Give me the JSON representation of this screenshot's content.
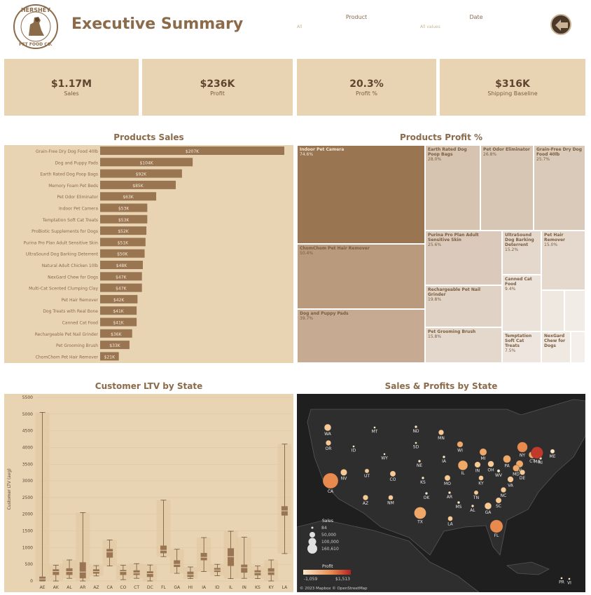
{
  "header": {
    "title": "Executive Summary",
    "logo_top": "HERSHEY",
    "logo_bottom": "PET FOOD CO.",
    "filter_product_label": "Product",
    "filter_product_value": "All",
    "filter_date_label": "Date",
    "filter_date_value": "All values"
  },
  "kpis": [
    {
      "value": "$1.17M",
      "label": "Sales"
    },
    {
      "value": "$236K",
      "label": "Profit"
    },
    {
      "value": "20.3%",
      "label": "Profit %"
    },
    {
      "value": "$316K",
      "label": "Shipping Baseline"
    }
  ],
  "sections": {
    "sales": "Products Sales",
    "profit": "Products Profit %",
    "ltv": "Customer LTV by State",
    "map": "Sales & Profits by State"
  },
  "products_sales": [
    {
      "name": "Grain-Free Dry Dog Food 40lb",
      "value": 207,
      "label": "$207K"
    },
    {
      "name": "Dog and Puppy Pads",
      "value": 104,
      "label": "$104K"
    },
    {
      "name": "Earth Rated Dog Poop Bags",
      "value": 92,
      "label": "$92K"
    },
    {
      "name": "Memory Foam Pet Beds",
      "value": 85,
      "label": "$85K"
    },
    {
      "name": "Pet Odor Eliminator",
      "value": 63,
      "label": "$63K"
    },
    {
      "name": "Indoor Pet Camera",
      "value": 53,
      "label": "$53K"
    },
    {
      "name": "Temptation Soft Cat Treats",
      "value": 53,
      "label": "$53K"
    },
    {
      "name": "ProBiotic Supplements for Dogs",
      "value": 52,
      "label": "$52K"
    },
    {
      "name": "Purina Pro Plan Adult Sensitive Skin",
      "value": 51,
      "label": "$51K"
    },
    {
      "name": "UltraSound Dog Barking Deterrent",
      "value": 50,
      "label": "$50K"
    },
    {
      "name": "Natural Adult Chicken 10lb",
      "value": 48,
      "label": "$48K"
    },
    {
      "name": "NexGard Chew for Dogs",
      "value": 47,
      "label": "$47K"
    },
    {
      "name": "Multi-Cat Scented Clumping Clay",
      "value": 47,
      "label": "$47K"
    },
    {
      "name": "Pet Hair Remover",
      "value": 42,
      "label": "$42K"
    },
    {
      "name": "Dog Treats with Real Bone",
      "value": 41,
      "label": "$41K"
    },
    {
      "name": "Canned Cat Food",
      "value": 41,
      "label": "$41K"
    },
    {
      "name": "Rechargeable Pet Nail Grinder",
      "value": 36,
      "label": "$36K"
    },
    {
      "name": "Pet Grooming Brush",
      "value": 33,
      "label": "$33K"
    },
    {
      "name": "ChomChom Pet Hair Remover",
      "value": 21,
      "label": "$21K"
    }
  ],
  "treemap": [
    {
      "name": "Indoor Pet Camera",
      "pct": "74.6%",
      "color": "#9a7552",
      "dark": false
    },
    {
      "name": "ChomChom Pet Hair Remover",
      "pct": "50.4%",
      "color": "#b99a7c",
      "dark": true
    },
    {
      "name": "Dog and Puppy Pads",
      "pct": "39.7%",
      "color": "#c6ab92",
      "dark": true
    },
    {
      "name": "Earth Rated Dog Poop Bags",
      "pct": "28.0%",
      "color": "#d6c3b0",
      "dark": true
    },
    {
      "name": "Pet Odor Eliminator",
      "pct": "26.8%",
      "color": "#d8c6b4",
      "dark": true
    },
    {
      "name": "Grain-Free Dry Dog Food 40lb",
      "pct": "25.7%",
      "color": "#dacab9",
      "dark": true
    },
    {
      "name": "Purina Pro Plan Adult Sensitive Skin",
      "pct": "25.6%",
      "color": "#dbcabb",
      "dark": true
    },
    {
      "name": "UltraSound Dog Barking Deterrent",
      "pct": "15.2%",
      "color": "#e4d8cd",
      "dark": true
    },
    {
      "name": "Pet Hair Remover",
      "pct": "15.0%",
      "color": "#e5d9ce",
      "dark": true
    },
    {
      "name": "Rechargeable Pet Nail Grinder",
      "pct": "19.8%",
      "color": "#e0d2c5",
      "dark": true
    },
    {
      "name": "Canned Cat Food",
      "pct": "9.4%",
      "color": "#ebe2d9",
      "dark": true
    },
    {
      "name": "Pet Grooming Brush",
      "pct": "15.8%",
      "color": "#e4d8cc",
      "dark": true
    },
    {
      "name": "Temptation Soft Cat Treats",
      "pct": "7.5%",
      "color": "#eee6de",
      "dark": true
    },
    {
      "name": "NexGard Chew for Dogs",
      "pct": "",
      "color": "#f0e9e2",
      "dark": true
    },
    {
      "name": "",
      "pct": "",
      "color": "#efe8e0",
      "dark": true
    },
    {
      "name": "",
      "pct": "",
      "color": "#f2ece6",
      "dark": true
    },
    {
      "name": "",
      "pct": "",
      "color": "#f4efea",
      "dark": true
    }
  ],
  "chart_data": {
    "type": "boxplot",
    "title": "Customer LTV by State",
    "ylabel": "Customer LTV (avg)",
    "ylim": [
      0,
      5500
    ],
    "yticks": [
      0,
      500,
      1000,
      1500,
      2000,
      2500,
      3000,
      3500,
      4000,
      4500,
      5000,
      5500
    ],
    "categories": [
      "AE",
      "AK",
      "AL",
      "AR",
      "AZ",
      "CA",
      "CO",
      "CT",
      "DC",
      "FL",
      "GA",
      "HI",
      "IA",
      "ID",
      "IL",
      "IN",
      "KS",
      "KY",
      "LA"
    ],
    "boxes": [
      {
        "min": 0,
        "q1": 0,
        "median": 60,
        "q3": 130,
        "max": 5050
      },
      {
        "min": 0,
        "q1": 180,
        "median": 280,
        "q3": 350,
        "max": 470
      },
      {
        "min": 80,
        "q1": 180,
        "median": 280,
        "q3": 380,
        "max": 630
      },
      {
        "min": 0,
        "q1": 80,
        "median": 270,
        "q3": 560,
        "max": 2050
      },
      {
        "min": 150,
        "q1": 220,
        "median": 280,
        "q3": 350,
        "max": 460
      },
      {
        "min": 450,
        "q1": 700,
        "median": 870,
        "q3": 960,
        "max": 1230
      },
      {
        "min": 40,
        "q1": 180,
        "median": 280,
        "q3": 330,
        "max": 470
      },
      {
        "min": 80,
        "q1": 180,
        "median": 240,
        "q3": 320,
        "max": 520
      },
      {
        "min": 0,
        "q1": 120,
        "median": 220,
        "q3": 290,
        "max": 480
      },
      {
        "min": 730,
        "q1": 830,
        "median": 920,
        "q3": 1060,
        "max": 2420
      },
      {
        "min": 230,
        "q1": 420,
        "median": 500,
        "q3": 620,
        "max": 950
      },
      {
        "min": 70,
        "q1": 120,
        "median": 190,
        "q3": 280,
        "max": 420
      },
      {
        "min": 280,
        "q1": 620,
        "median": 710,
        "q3": 840,
        "max": 1300
      },
      {
        "min": 160,
        "q1": 270,
        "median": 330,
        "q3": 390,
        "max": 500
      },
      {
        "min": 70,
        "q1": 450,
        "median": 730,
        "q3": 980,
        "max": 1490
      },
      {
        "min": 80,
        "q1": 250,
        "median": 400,
        "q3": 490,
        "max": 1310
      },
      {
        "min": 70,
        "q1": 170,
        "median": 250,
        "q3": 320,
        "max": 450
      },
      {
        "min": 0,
        "q1": 180,
        "median": 270,
        "q3": 380,
        "max": 630
      },
      {
        "min": 820,
        "q1": 1960,
        "median": 2100,
        "q3": 2240,
        "max": 4100
      }
    ]
  },
  "map": {
    "states": [
      {
        "code": "WA",
        "sales": 20000,
        "profit": 200
      },
      {
        "code": "OR",
        "sales": 12000,
        "profit": 150
      },
      {
        "code": "ID",
        "sales": 2000,
        "profit": 60
      },
      {
        "code": "MT",
        "sales": 2000,
        "profit": 60
      },
      {
        "code": "ND",
        "sales": 3000,
        "profit": 60
      },
      {
        "code": "MN",
        "sales": 12000,
        "profit": 200
      },
      {
        "code": "WI",
        "sales": 15000,
        "profit": 250
      },
      {
        "code": "MI",
        "sales": 22000,
        "profit": 300
      },
      {
        "code": "NY",
        "sales": 45000,
        "profit": 500
      },
      {
        "code": "ME",
        "sales": 8000,
        "profit": 100
      },
      {
        "code": "SD",
        "sales": 2000,
        "profit": 60
      },
      {
        "code": "WY",
        "sales": 1000,
        "profit": 50
      },
      {
        "code": "NV",
        "sales": 18000,
        "profit": 200
      },
      {
        "code": "UT",
        "sales": 8000,
        "profit": 120
      },
      {
        "code": "CO",
        "sales": 14000,
        "profit": 200
      },
      {
        "code": "NE",
        "sales": 3000,
        "profit": 80
      },
      {
        "code": "IA",
        "sales": 3000,
        "profit": 80
      },
      {
        "code": "IL",
        "sales": 40000,
        "profit": 400
      },
      {
        "code": "IN",
        "sales": 15000,
        "profit": 200
      },
      {
        "code": "OH",
        "sales": 16000,
        "profit": 200
      },
      {
        "code": "PA",
        "sales": 25000,
        "profit": 300
      },
      {
        "code": "NJ",
        "sales": 22000,
        "profit": 300
      },
      {
        "code": "CT",
        "sales": 20000,
        "profit": 250
      },
      {
        "code": "RI",
        "sales": 3000,
        "profit": 100
      },
      {
        "code": "MA",
        "sales": 60000,
        "profit": 1500
      },
      {
        "code": "CA",
        "sales": 100000,
        "profit": 600
      },
      {
        "code": "KS",
        "sales": 3000,
        "profit": 60
      },
      {
        "code": "MO",
        "sales": 14000,
        "profit": 200
      },
      {
        "code": "KY",
        "sales": 10000,
        "profit": 150
      },
      {
        "code": "WV",
        "sales": 4000,
        "profit": 80
      },
      {
        "code": "VA",
        "sales": 15000,
        "profit": 200
      },
      {
        "code": "DE",
        "sales": 12000,
        "profit": 200
      },
      {
        "code": "MD",
        "sales": 18000,
        "profit": 250
      },
      {
        "code": "AZ",
        "sales": 12000,
        "profit": 150
      },
      {
        "code": "NM",
        "sales": 10000,
        "profit": 150
      },
      {
        "code": "OK",
        "sales": 3000,
        "profit": 60
      },
      {
        "code": "AR",
        "sales": 3000,
        "profit": 60
      },
      {
        "code": "TN",
        "sales": 8000,
        "profit": 120
      },
      {
        "code": "NC",
        "sales": 12000,
        "profit": 150
      },
      {
        "code": "SC",
        "sales": 14000,
        "profit": 180
      },
      {
        "code": "MS",
        "sales": 3000,
        "profit": 60
      },
      {
        "code": "AL",
        "sales": 3000,
        "profit": 60
      },
      {
        "code": "GA",
        "sales": 20000,
        "profit": 220
      },
      {
        "code": "TX",
        "sales": 60000,
        "profit": 350
      },
      {
        "code": "LA",
        "sales": 10000,
        "profit": 120
      },
      {
        "code": "FL",
        "sales": 70000,
        "profit": 450
      },
      {
        "code": "PR",
        "sales": 1000,
        "profit": 40
      },
      {
        "code": "VI",
        "sales": 1000,
        "profit": 40
      }
    ],
    "legend_sales_title": "Sales",
    "legend_sales_values": [
      "84",
      "50,000",
      "100,000",
      "160,610"
    ],
    "legend_profit_title": "Profit",
    "legend_profit_min": "-1,059",
    "legend_profit_max": "$1,513",
    "attribution": "© 2023 Mapbox © OpenStreetMap"
  }
}
